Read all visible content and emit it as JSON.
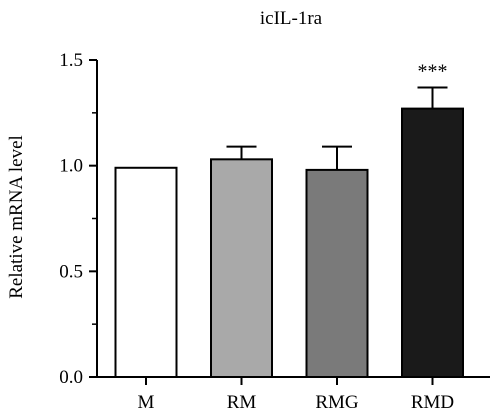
{
  "chart_data": {
    "type": "bar",
    "title": "icIL-1ra",
    "xlabel": "",
    "ylabel": "Relative mRNA level",
    "ylim": [
      0,
      1.5
    ],
    "yticks": [
      "0.0",
      "0.5",
      "1.0",
      "1.5"
    ],
    "ytick_values": [
      0,
      0.5,
      1.0,
      1.5
    ],
    "minor_ticks": [
      0.25,
      0.75,
      1.25
    ],
    "categories": [
      "M",
      "RM",
      "RMG",
      "RMD"
    ],
    "values": [
      0.99,
      1.03,
      0.98,
      1.27
    ],
    "errors": [
      0,
      0.06,
      0.11,
      0.1
    ],
    "annotations": [
      "",
      "",
      "",
      "***"
    ],
    "bar_colors": [
      "#ffffff",
      "#a9a9a9",
      "#7a7a7a",
      "#1a1a1a"
    ],
    "bar_edge_color": "#000000",
    "grid": false,
    "legend": "none"
  }
}
